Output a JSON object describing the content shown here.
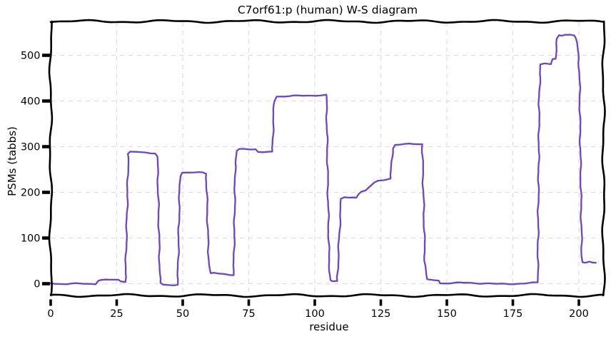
{
  "chart_data": {
    "type": "line",
    "title": "C7orf61:p (human) W-S diagram",
    "xlabel": "residue",
    "ylabel": "PSMs (tabbs)",
    "style": "xkcd-hand-drawn",
    "grid": true,
    "legend": "none",
    "xlim": [
      0,
      209
    ],
    "ylim": [
      -28,
      573
    ],
    "x_ticks": [
      0,
      25,
      50,
      75,
      100,
      125,
      150,
      175,
      200
    ],
    "y_ticks": [
      0,
      100,
      200,
      300,
      400,
      500
    ],
    "colors": {
      "line": "#6b46c8",
      "grid": "#e0e0e0",
      "frame": "#000000",
      "background": "#ffffff"
    },
    "series": [
      {
        "name": "PSMs",
        "points": [
          [
            0,
            2
          ],
          [
            3,
            0
          ],
          [
            6,
            -1
          ],
          [
            11,
            0
          ],
          [
            17,
            0
          ],
          [
            17.9,
            7
          ],
          [
            19,
            8
          ],
          [
            25.6,
            8
          ],
          [
            26.6,
            5
          ],
          [
            28.3,
            5
          ],
          [
            29.4,
            284
          ],
          [
            30.2,
            288
          ],
          [
            34,
            288
          ],
          [
            39.6,
            286
          ],
          [
            40.4,
            278
          ],
          [
            41.4,
            2
          ],
          [
            42.6,
            -2
          ],
          [
            46.6,
            -3
          ],
          [
            48.1,
            -1
          ],
          [
            48.9,
            235
          ],
          [
            49.6,
            243
          ],
          [
            57.6,
            243
          ],
          [
            58.9,
            241
          ],
          [
            59.7,
            70
          ],
          [
            60.3,
            23
          ],
          [
            65,
            22
          ],
          [
            67.6,
            20
          ],
          [
            69.3,
            20
          ],
          [
            69.9,
            265
          ],
          [
            70.6,
            291
          ],
          [
            71.6,
            294
          ],
          [
            77.6,
            295
          ],
          [
            78.6,
            289
          ],
          [
            83.9,
            288
          ],
          [
            84.6,
            400
          ],
          [
            85.4,
            410
          ],
          [
            94,
            411
          ],
          [
            102,
            413
          ],
          [
            104.4,
            413
          ],
          [
            105.4,
            50
          ],
          [
            105.9,
            8
          ],
          [
            106.6,
            5
          ],
          [
            108.5,
            5
          ],
          [
            109.4,
            120
          ],
          [
            110,
            186
          ],
          [
            111.2,
            190
          ],
          [
            115.8,
            189
          ],
          [
            116.5,
            196
          ],
          [
            117.6,
            201
          ],
          [
            119.4,
            203
          ],
          [
            121,
            213
          ],
          [
            122.6,
            222
          ],
          [
            124,
            226
          ],
          [
            126,
            228
          ],
          [
            128.7,
            230
          ],
          [
            129.5,
            296
          ],
          [
            130.4,
            304
          ],
          [
            134,
            305
          ],
          [
            140.7,
            306
          ],
          [
            141.7,
            50
          ],
          [
            142.3,
            10
          ],
          [
            143.1,
            8
          ],
          [
            146.9,
            8
          ],
          [
            147.6,
            1
          ],
          [
            152,
            1
          ],
          [
            158,
            2
          ],
          [
            164,
            1
          ],
          [
            169,
            -1
          ],
          [
            175,
            0
          ],
          [
            181,
            1
          ],
          [
            184.4,
            2
          ],
          [
            185,
            420
          ],
          [
            185.5,
            480
          ],
          [
            187,
            481
          ],
          [
            189.4,
            481
          ],
          [
            189.8,
            492
          ],
          [
            191.2,
            493
          ],
          [
            191.8,
            536
          ],
          [
            192.5,
            544
          ],
          [
            193.5,
            543
          ],
          [
            194.7,
            545
          ],
          [
            196.6,
            546
          ],
          [
            198.3,
            545
          ],
          [
            199,
            536
          ],
          [
            199.7,
            503
          ],
          [
            200.2,
            466
          ],
          [
            200.7,
            230
          ],
          [
            201.1,
            60
          ],
          [
            201.5,
            47
          ],
          [
            202.4,
            46
          ],
          [
            204.1,
            47
          ],
          [
            204.9,
            45
          ],
          [
            206.4,
            45
          ]
        ]
      }
    ]
  }
}
